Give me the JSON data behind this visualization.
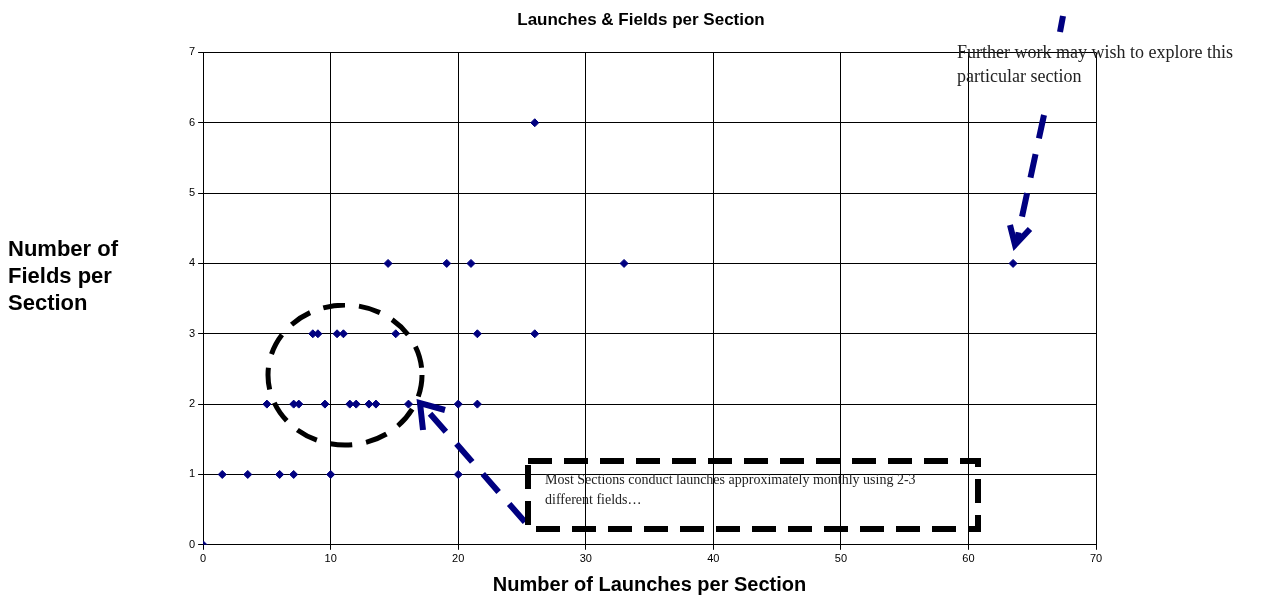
{
  "chart_data": {
    "type": "scatter",
    "title": "Launches & Fields per Section",
    "xlabel": "Number of Launches per Section",
    "ylabel": "Number of Fields per Section",
    "x": [
      0,
      1.5,
      3.5,
      6,
      7.1,
      10,
      20,
      5,
      7.1,
      7.5,
      9.55,
      11.5,
      12,
      13,
      13.55,
      16.1,
      20,
      21.5,
      8.6,
      9,
      10.5,
      11,
      15.1,
      21.5,
      26,
      14.5,
      19.1,
      21,
      33,
      63.5,
      26
    ],
    "values": [
      0,
      1,
      1,
      1,
      1,
      1,
      1,
      2,
      2,
      2,
      2,
      2,
      2,
      2,
      2,
      2,
      2,
      2,
      3,
      3,
      3,
      3,
      3,
      3,
      3,
      4,
      4,
      4,
      4,
      4,
      6
    ],
    "color": "#000080",
    "marker": "diamond",
    "xlim": [
      0,
      70
    ],
    "xticks": [
      0,
      10,
      20,
      30,
      40,
      50,
      60,
      70
    ],
    "ylim": [
      0,
      7
    ],
    "yticks": [
      0,
      1,
      2,
      3,
      4,
      5,
      6,
      7
    ],
    "grid": true,
    "legend": false,
    "annotations": [
      "Most Sections conduct launches approximately monthly using 2-3 different fields…",
      "Further work may wish to explore this particular section"
    ]
  }
}
